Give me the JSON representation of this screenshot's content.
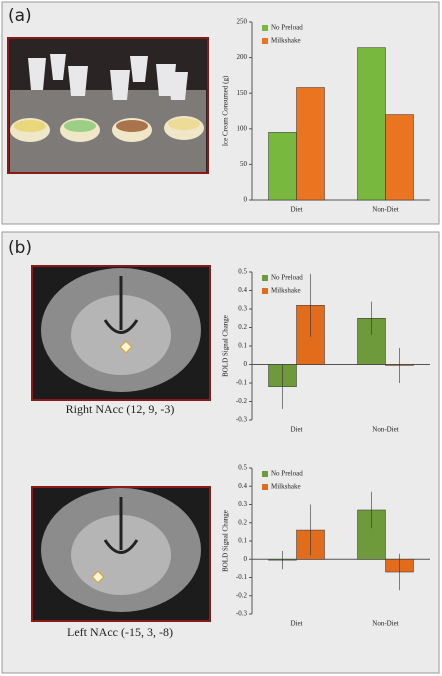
{
  "panels": [
    "(a)",
    "(b)"
  ],
  "captions": [
    "Right NAcc (12, 9, -3)",
    "Left NAcc (-15, 3, -8)"
  ],
  "chart_data": [
    {
      "type": "bar",
      "ylabel": "Ice Cream Consumed (g)",
      "categories": [
        "Diet",
        "Non-Diet"
      ],
      "series": [
        {
          "name": "No Preload",
          "color": "#78b83f",
          "values": [
            95,
            214
          ]
        },
        {
          "name": "Milkshake",
          "color": "#ea7420",
          "values": [
            158,
            120
          ]
        }
      ],
      "ylim": [
        0,
        250
      ],
      "yticks": [
        0,
        50,
        100,
        150,
        200,
        250
      ],
      "legend": "upper left"
    },
    {
      "type": "bar",
      "ylabel": "BOLD Signal Change",
      "categories": [
        "Diet",
        "Non-Diet"
      ],
      "series": [
        {
          "name": "No Preload",
          "color": "#6f9a3c",
          "values": [
            -0.12,
            0.25
          ],
          "errors": [
            0.12,
            0.09
          ]
        },
        {
          "name": "Milkshake",
          "color": "#e06c1c",
          "values": [
            0.32,
            -0.005
          ],
          "errors": [
            0.17,
            0.095
          ]
        }
      ],
      "ylim": [
        -0.3,
        0.5
      ],
      "yticks": [
        -0.3,
        -0.2,
        -0.1,
        0,
        0.1,
        0.2,
        0.3,
        0.4,
        0.5
      ],
      "legend": "upper left"
    },
    {
      "type": "bar",
      "ylabel": "BOLD Signal Change",
      "categories": [
        "Diet",
        "Non-Diet"
      ],
      "series": [
        {
          "name": "No Preload",
          "color": "#6f9a3c",
          "values": [
            -0.005,
            0.27
          ],
          "errors": [
            0.05,
            0.1
          ]
        },
        {
          "name": "Milkshake",
          "color": "#e06c1c",
          "values": [
            0.16,
            -0.07
          ],
          "errors": [
            0.14,
            0.1
          ]
        }
      ],
      "ylim": [
        -0.3,
        0.5
      ],
      "yticks": [
        -0.3,
        -0.2,
        -0.1,
        0,
        0.1,
        0.2,
        0.3,
        0.4,
        0.5
      ],
      "legend": "upper left"
    }
  ]
}
